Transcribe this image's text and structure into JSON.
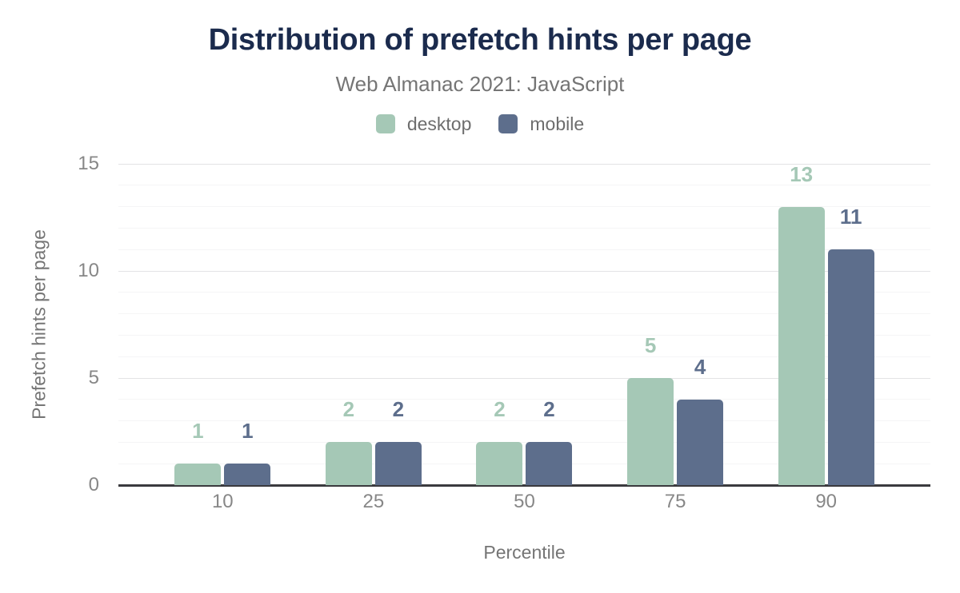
{
  "chart_data": {
    "type": "bar",
    "title": "Distribution of prefetch hints per page",
    "subtitle": "Web Almanac 2021: JavaScript",
    "categories": [
      "10",
      "25",
      "50",
      "75",
      "90"
    ],
    "series": [
      {
        "name": "desktop",
        "color": "#a5c8b6",
        "values": [
          1,
          2,
          2,
          5,
          13
        ]
      },
      {
        "name": "mobile",
        "color": "#5d6e8c",
        "values": [
          1,
          2,
          2,
          4,
          11
        ]
      }
    ],
    "xlabel": "Percentile",
    "ylabel": "Prefetch hints per page",
    "ylim": [
      0,
      15
    ],
    "yticks": [
      0,
      5,
      10,
      15
    ],
    "minor_tick_step": 1,
    "grid": true,
    "legend_position": "top",
    "value_labels": true
  },
  "colors": {
    "title_text": "#1b2b4d",
    "subtitle_text": "#757575",
    "legend_text": "#6d6d6d",
    "tick_label_text": "#878787",
    "axis_title_text": "#757575",
    "axis_line": "#3a3a3e",
    "grid_major": "#e3e3e5",
    "grid_minor": "#f5f5f6",
    "background": "#ffffff"
  }
}
